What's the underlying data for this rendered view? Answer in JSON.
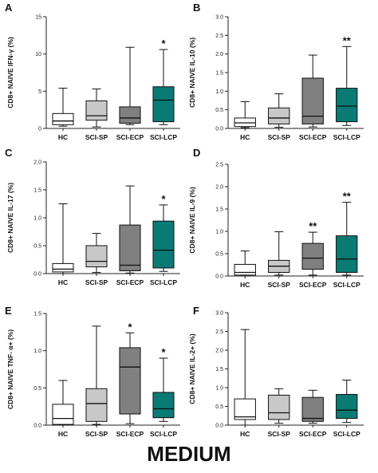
{
  "figure_label": "MEDIUM",
  "colors": {
    "HC": "#ffffff",
    "SCI-SP": "#c8c8c8",
    "SCI-ECP": "#808080",
    "SCI-LCP": "#0a7a74"
  },
  "chart_data": [
    {
      "type": "boxplot",
      "panel": "A",
      "ylabel": "CD8+ NAIVE IFN-γ (%)",
      "ylim": [
        0,
        15
      ],
      "yticks": [
        0,
        5,
        10,
        15
      ],
      "yticklabels": [
        "0",
        "5",
        "10",
        "15"
      ],
      "categories": [
        "HC",
        "SCI-SP",
        "SCI-ECP",
        "SCI-LCP"
      ],
      "boxes": [
        {
          "whislo": 0.3,
          "q1": 0.5,
          "med": 1.0,
          "q3": 2.0,
          "whishi": 5.4,
          "sig": ""
        },
        {
          "whislo": 0.2,
          "q1": 1.1,
          "med": 1.7,
          "q3": 3.7,
          "whishi": 5.3,
          "sig": ""
        },
        {
          "whislo": 0.5,
          "q1": 0.7,
          "med": 1.4,
          "q3": 2.9,
          "whishi": 10.9,
          "sig": ""
        },
        {
          "whislo": 0.5,
          "q1": 0.9,
          "med": 3.8,
          "q3": 5.6,
          "whishi": 10.6,
          "sig": "*"
        }
      ]
    },
    {
      "type": "boxplot",
      "panel": "B",
      "ylabel": "CD8+ NAIVE IL-10 (%)",
      "ylim": [
        0,
        3
      ],
      "yticks": [
        0,
        0.5,
        1,
        1.5,
        2,
        2.5,
        3
      ],
      "yticklabels": [
        "0.0",
        "0.5",
        "1.0",
        "1.5",
        "2.0",
        "2.5",
        "3.0"
      ],
      "categories": [
        "HC",
        "SCI-SP",
        "SCI-ECP",
        "SCI-LCP"
      ],
      "boxes": [
        {
          "whislo": 0.02,
          "q1": 0.05,
          "med": 0.15,
          "q3": 0.28,
          "whishi": 0.72,
          "sig": ""
        },
        {
          "whislo": 0.03,
          "q1": 0.12,
          "med": 0.28,
          "q3": 0.55,
          "whishi": 0.93,
          "sig": ""
        },
        {
          "whislo": 0.04,
          "q1": 0.12,
          "med": 0.33,
          "q3": 1.35,
          "whishi": 1.97,
          "sig": ""
        },
        {
          "whislo": 0.08,
          "q1": 0.18,
          "med": 0.6,
          "q3": 1.08,
          "whishi": 2.2,
          "sig": "**"
        }
      ]
    },
    {
      "type": "boxplot",
      "panel": "C",
      "ylabel": "CD8+ NAIVE IL-17 (%)",
      "ylim": [
        0,
        2
      ],
      "yticks": [
        0,
        0.5,
        1,
        1.5,
        2
      ],
      "yticklabels": [
        "0.0",
        "0.5",
        "1.0",
        "1.5",
        "2.0"
      ],
      "categories": [
        "HC",
        "SCI-SP",
        "SCI-ECP",
        "SCI-LCP"
      ],
      "boxes": [
        {
          "whislo": 0.0,
          "q1": 0.03,
          "med": 0.08,
          "q3": 0.18,
          "whishi": 1.25,
          "sig": ""
        },
        {
          "whislo": 0.02,
          "q1": 0.12,
          "med": 0.22,
          "q3": 0.5,
          "whishi": 0.72,
          "sig": ""
        },
        {
          "whislo": 0.01,
          "q1": 0.05,
          "med": 0.15,
          "q3": 0.87,
          "whishi": 1.57,
          "sig": ""
        },
        {
          "whislo": 0.04,
          "q1": 0.1,
          "med": 0.42,
          "q3": 0.94,
          "whishi": 1.23,
          "sig": "*"
        }
      ]
    },
    {
      "type": "boxplot",
      "panel": "D",
      "ylabel": "CD8+ NAIVE IL-9 (%)",
      "ylim": [
        0,
        2.5
      ],
      "yticks": [
        0,
        0.5,
        1,
        1.5,
        2,
        2.5
      ],
      "yticklabels": [
        "0.0",
        "0.5",
        "1.0",
        "1.5",
        "2.0",
        "2.5"
      ],
      "categories": [
        "HC",
        "SCI-SP",
        "SCI-ECP",
        "SCI-LCP"
      ],
      "boxes": [
        {
          "whislo": 0.0,
          "q1": 0.02,
          "med": 0.08,
          "q3": 0.26,
          "whishi": 0.56,
          "sig": ""
        },
        {
          "whislo": 0.02,
          "q1": 0.08,
          "med": 0.22,
          "q3": 0.35,
          "whishi": 0.99,
          "sig": ""
        },
        {
          "whislo": 0.02,
          "q1": 0.15,
          "med": 0.4,
          "q3": 0.73,
          "whishi": 0.98,
          "sig": "**"
        },
        {
          "whislo": 0.02,
          "q1": 0.08,
          "med": 0.38,
          "q3": 0.9,
          "whishi": 1.65,
          "sig": "**"
        }
      ]
    },
    {
      "type": "boxplot",
      "panel": "E",
      "ylabel": "CD8+ NAIVE TNF- α+ (%)",
      "ylim": [
        0,
        1.5
      ],
      "yticks": [
        0,
        0.5,
        1,
        1.5
      ],
      "yticklabels": [
        "0.0",
        "0.5",
        "1.0",
        "1.5"
      ],
      "categories": [
        "HC",
        "SCI-SP",
        "SCI-ECP",
        "SCI-LCP"
      ],
      "boxes": [
        {
          "whislo": 0.0,
          "q1": 0.01,
          "med": 0.09,
          "q3": 0.28,
          "whishi": 0.6,
          "sig": ""
        },
        {
          "whislo": 0.01,
          "q1": 0.05,
          "med": 0.29,
          "q3": 0.49,
          "whishi": 1.33,
          "sig": ""
        },
        {
          "whislo": 0.02,
          "q1": 0.15,
          "med": 0.78,
          "q3": 1.04,
          "whishi": 1.24,
          "sig": "*"
        },
        {
          "whislo": 0.05,
          "q1": 0.1,
          "med": 0.22,
          "q3": 0.44,
          "whishi": 0.9,
          "sig": "*"
        }
      ]
    },
    {
      "type": "boxplot",
      "panel": "F",
      "ylabel": "CD8+ NAIVE IL-2+ (%)",
      "ylim": [
        0,
        3
      ],
      "yticks": [
        0,
        0.5,
        1,
        1.5,
        2,
        2.5,
        3
      ],
      "yticklabels": [
        "0.0",
        "0.5",
        "1.0",
        "1.5",
        "2.0",
        "2.5",
        "3.0"
      ],
      "categories": [
        "HC",
        "SCI-SP",
        "SCI-ECP",
        "SCI-LCP"
      ],
      "boxes": [
        {
          "whislo": 0.0,
          "q1": 0.15,
          "med": 0.22,
          "q3": 0.7,
          "whishi": 2.55,
          "sig": ""
        },
        {
          "whislo": 0.05,
          "q1": 0.15,
          "med": 0.33,
          "q3": 0.8,
          "whishi": 0.97,
          "sig": ""
        },
        {
          "whislo": 0.05,
          "q1": 0.1,
          "med": 0.18,
          "q3": 0.74,
          "whishi": 0.93,
          "sig": ""
        },
        {
          "whislo": 0.07,
          "q1": 0.18,
          "med": 0.4,
          "q3": 0.82,
          "whishi": 1.2,
          "sig": ""
        }
      ]
    }
  ]
}
